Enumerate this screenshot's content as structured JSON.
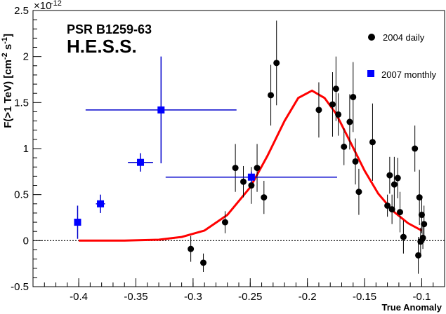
{
  "chart_data": {
    "type": "scatter",
    "xlabel": "True Anomaly",
    "ylabel": "F(>1 TeV) [cm^-2 s^-1]",
    "ylabel_parts": {
      "main": "F(>1 TeV) [cm",
      "e1": "-2",
      "mid": " s",
      "e2": "-1",
      "end": "]"
    },
    "y_multiplier": {
      "base": "×10",
      "exp": "-12"
    },
    "annotations": {
      "source": "PSR B1259-63",
      "instrument": "H.E.S.S."
    },
    "xlim": [
      -0.44,
      -0.08
    ],
    "ylim": [
      -0.5,
      2.5
    ],
    "x_ticks": [
      -0.4,
      -0.35,
      -0.3,
      -0.25,
      -0.2,
      -0.15,
      -0.1
    ],
    "x_tick_labels": [
      "-0.4",
      "-0.35",
      "-0.3",
      "-0.25",
      "-0.2",
      "-0.15",
      "-0.1"
    ],
    "y_ticks": [
      -0.5,
      0,
      0.5,
      1,
      1.5,
      2,
      2.5
    ],
    "y_tick_labels": [
      "-0.5",
      "0",
      "0.5",
      "1",
      "1.5",
      "2",
      "2.5"
    ],
    "zero_line": 0,
    "legend_position": "top-right",
    "series": [
      {
        "name": "2004 daily",
        "marker": "circle",
        "color": "#000000",
        "points": [
          {
            "x": -0.302,
            "y": -0.09,
            "yerr": 0.14
          },
          {
            "x": -0.291,
            "y": -0.24,
            "yerr": 0.1
          },
          {
            "x": -0.272,
            "y": 0.2,
            "yerr": 0.12
          },
          {
            "x": -0.263,
            "y": 0.79,
            "yerr": 0.26
          },
          {
            "x": -0.256,
            "y": 0.64,
            "yerr": 0.17
          },
          {
            "x": -0.249,
            "y": 0.6,
            "yerr": 0.2
          },
          {
            "x": -0.244,
            "y": 0.79,
            "yerr": 0.26
          },
          {
            "x": -0.238,
            "y": 0.47,
            "yerr": 0.18
          },
          {
            "x": -0.232,
            "y": 1.58,
            "yerr": 0.33
          },
          {
            "x": -0.227,
            "y": 1.93,
            "yerr": 0.46
          },
          {
            "x": -0.19,
            "y": 1.42,
            "yerr": 0.3
          },
          {
            "x": -0.178,
            "y": 1.48,
            "yerr": 0.35
          },
          {
            "x": -0.175,
            "y": 1.65,
            "yerr": 0.35
          },
          {
            "x": -0.173,
            "y": 1.37,
            "yerr": 0.23
          },
          {
            "x": -0.168,
            "y": 1.02,
            "yerr": 0.2
          },
          {
            "x": -0.163,
            "y": 1.29,
            "yerr": 0.3
          },
          {
            "x": -0.16,
            "y": 1.56,
            "yerr": 0.38
          },
          {
            "x": -0.158,
            "y": 0.86,
            "yerr": 0.25
          },
          {
            "x": -0.155,
            "y": 0.53,
            "yerr": 0.25
          },
          {
            "x": -0.143,
            "y": 1.07,
            "yerr": 0.42
          },
          {
            "x": -0.13,
            "y": 0.38,
            "yerr": 0.12
          },
          {
            "x": -0.128,
            "y": 0.71,
            "yerr": 0.2
          },
          {
            "x": -0.126,
            "y": 0.34,
            "yerr": 0.16
          },
          {
            "x": -0.124,
            "y": 0.61,
            "yerr": 0.3
          },
          {
            "x": -0.121,
            "y": 0.68,
            "yerr": 0.22
          },
          {
            "x": -0.119,
            "y": 0.31,
            "yerr": 0.22
          },
          {
            "x": -0.116,
            "y": 0.04,
            "yerr": 0.18
          },
          {
            "x": -0.106,
            "y": 1.0,
            "yerr": 0.25
          },
          {
            "x": -0.103,
            "y": -0.16,
            "yerr": 0.2
          },
          {
            "x": -0.102,
            "y": 0.47,
            "yerr": 0.3
          },
          {
            "x": -0.101,
            "y": -0.01,
            "yerr": 0.15
          },
          {
            "x": -0.1,
            "y": 0.28,
            "yerr": 0.2
          },
          {
            "x": -0.099,
            "y": 0.03,
            "yerr": 0.12
          },
          {
            "x": -0.098,
            "y": 0.18,
            "yerr": 0.2
          }
        ]
      },
      {
        "name": "2007 monthly",
        "marker": "square",
        "color": "#0000ff",
        "points": [
          {
            "x": -0.401,
            "y": 0.2,
            "xerr": 0.001,
            "yerr": 0.18
          },
          {
            "x": -0.381,
            "y": 0.4,
            "xerr": 0.004,
            "yerr": 0.1
          },
          {
            "x": -0.346,
            "y": 0.85,
            "xerr": 0.011,
            "yerr": 0.1
          },
          {
            "x": -0.328,
            "y": 1.42,
            "xerr": 0.066,
            "yerr": 0.58
          },
          {
            "x": -0.249,
            "y": 0.69,
            "xerr": 0.075,
            "yerr": 0.06
          }
        ]
      },
      {
        "name": "model",
        "type": "line",
        "color": "#ff0000",
        "points": [
          {
            "x": -0.4,
            "y": 0.0
          },
          {
            "x": -0.36,
            "y": 0.0
          },
          {
            "x": -0.33,
            "y": 0.01
          },
          {
            "x": -0.31,
            "y": 0.04
          },
          {
            "x": -0.29,
            "y": 0.11
          },
          {
            "x": -0.27,
            "y": 0.28
          },
          {
            "x": -0.25,
            "y": 0.58
          },
          {
            "x": -0.235,
            "y": 0.92
          },
          {
            "x": -0.22,
            "y": 1.3
          },
          {
            "x": -0.208,
            "y": 1.55
          },
          {
            "x": -0.196,
            "y": 1.63
          },
          {
            "x": -0.185,
            "y": 1.55
          },
          {
            "x": -0.175,
            "y": 1.38
          },
          {
            "x": -0.162,
            "y": 1.06
          },
          {
            "x": -0.15,
            "y": 0.76
          },
          {
            "x": -0.138,
            "y": 0.51
          },
          {
            "x": -0.125,
            "y": 0.32
          },
          {
            "x": -0.112,
            "y": 0.19
          },
          {
            "x": -0.1,
            "y": 0.11
          }
        ]
      }
    ]
  }
}
